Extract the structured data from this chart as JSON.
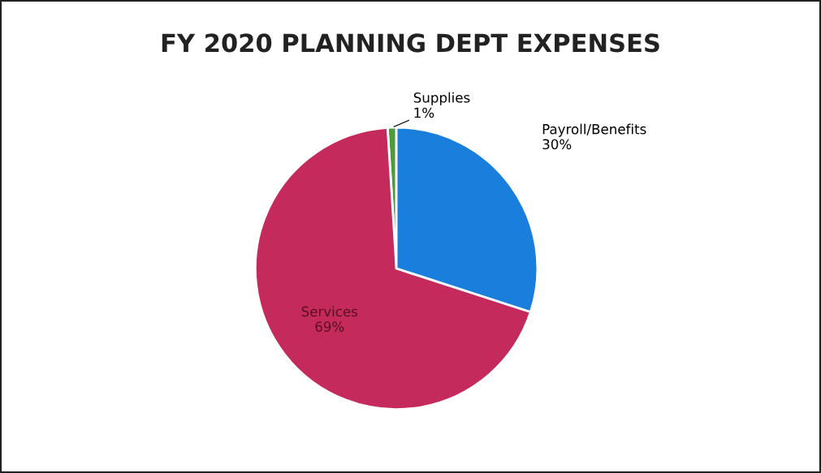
{
  "chart_data": {
    "type": "pie",
    "title": "FY 2020 PLANNING DEPT EXPENSES",
    "categories": [
      "Supplies",
      "Services",
      "Payroll/Benefits"
    ],
    "values": [
      1,
      69,
      30
    ],
    "value_labels": [
      "1%",
      "69%",
      "30%"
    ],
    "colors": [
      "#4f9a3c",
      "#c42a5c",
      "#1a7fdc"
    ],
    "legend": false
  }
}
